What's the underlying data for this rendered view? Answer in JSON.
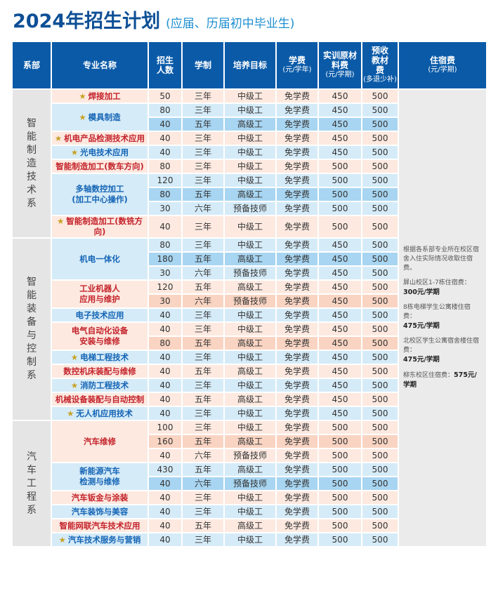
{
  "title": {
    "main": "2024年招生计划",
    "subtitle": "(应届、历届初中毕业生)"
  },
  "colors": {
    "header": "#0a5aa8",
    "red_text": "#c4232b",
    "blue_text": "#1565b5",
    "star": "#c9a227",
    "pink": "#fde9e0",
    "blue": "#d5ebf8"
  },
  "headers": {
    "dept": "系部",
    "major": "专业名称",
    "count": "招生人数",
    "duration": "学制",
    "goal": "培养目标",
    "tuition": "学费",
    "tuition_unit": "(元/学年)",
    "material": "实训原材料费",
    "material_unit": "(元/学期)",
    "books": "预收教材费",
    "books_unit": "(多退少补)",
    "dorm": "住宿费",
    "dorm_unit": "(元/学期)"
  },
  "dorm_note": {
    "intro": "根据各系部专业所在校区宿舍入住实际情况收取住宿费。",
    "items": [
      {
        "label": "屏山校区1-7栋住宿费：",
        "price": "300元/学期"
      },
      {
        "label": "8栋电梯学生公寓楼住宿费：",
        "price": "475元/学期"
      },
      {
        "label": "北校区学生公寓宿舍楼住宿费：",
        "price": "475元/学期"
      },
      {
        "label": "柳东校区住宿费：",
        "price": "575元/学期"
      }
    ]
  },
  "departments": [
    {
      "name": "智能制造技术系",
      "majors": [
        {
          "name": "焊接加工",
          "star": true,
          "color": "red",
          "rows": [
            [
              "50",
              "三年",
              "中级工",
              "免学费",
              "450",
              "500"
            ]
          ]
        },
        {
          "name": "模具制造",
          "star": true,
          "color": "blue",
          "dark": 1,
          "rows": [
            [
              "80",
              "三年",
              "中级工",
              "免学费",
              "450",
              "500"
            ],
            [
              "40",
              "五年",
              "高级工",
              "免学费",
              "450",
              "500"
            ]
          ]
        },
        {
          "name": "机电产品检测技术应用",
          "star": true,
          "color": "red",
          "rows": [
            [
              "40",
              "三年",
              "中级工",
              "免学费",
              "450",
              "500"
            ]
          ]
        },
        {
          "name": "光电技术应用",
          "star": true,
          "color": "blue",
          "rows": [
            [
              "40",
              "三年",
              "中级工",
              "免学费",
              "450",
              "500"
            ]
          ]
        },
        {
          "name": "智能制造加工(数车方向)",
          "star": false,
          "color": "red",
          "rows": [
            [
              "80",
              "三年",
              "中级工",
              "免学费",
              "500",
              "500"
            ]
          ]
        },
        {
          "name": "多轴数控加工\n(加工中心操作)",
          "star": false,
          "color": "blue",
          "dark": 1,
          "rows": [
            [
              "120",
              "三年",
              "中级工",
              "免学费",
              "500",
              "500"
            ],
            [
              "80",
              "五年",
              "高级工",
              "免学费",
              "500",
              "500"
            ],
            [
              "30",
              "六年",
              "预备技师",
              "免学费",
              "500",
              "500"
            ]
          ]
        },
        {
          "name": "智能制造加工(数铣方向)",
          "star": true,
          "color": "red",
          "rows": [
            [
              "40",
              "三年",
              "中级工",
              "免学费",
              "500",
              "500"
            ]
          ]
        }
      ]
    },
    {
      "name": "智能装备与控制系",
      "majors": [
        {
          "name": "机电一体化",
          "star": false,
          "color": "blue",
          "dark": 1,
          "rows": [
            [
              "80",
              "三年",
              "中级工",
              "免学费",
              "450",
              "500"
            ],
            [
              "180",
              "五年",
              "高级工",
              "免学费",
              "450",
              "500"
            ],
            [
              "30",
              "六年",
              "预备技师",
              "免学费",
              "450",
              "500"
            ]
          ]
        },
        {
          "name": "工业机器人\n应用与维护",
          "star": false,
          "color": "red",
          "dark": 1,
          "rows": [
            [
              "120",
              "五年",
              "高级工",
              "免学费",
              "450",
              "500"
            ],
            [
              "30",
              "六年",
              "预备技师",
              "免学费",
              "450",
              "500"
            ]
          ]
        },
        {
          "name": "电子技术应用",
          "star": false,
          "color": "blue",
          "rows": [
            [
              "40",
              "三年",
              "中级工",
              "免学费",
              "450",
              "500"
            ]
          ]
        },
        {
          "name": "电气自动化设备\n安装与维修",
          "star": false,
          "color": "red",
          "dark": 1,
          "rows": [
            [
              "40",
              "三年",
              "中级工",
              "免学费",
              "450",
              "500"
            ],
            [
              "80",
              "五年",
              "高级工",
              "免学费",
              "450",
              "500"
            ]
          ]
        },
        {
          "name": "电梯工程技术",
          "star": true,
          "color": "blue",
          "rows": [
            [
              "40",
              "三年",
              "中级工",
              "免学费",
              "450",
              "500"
            ]
          ]
        },
        {
          "name": "数控机床装配与维修",
          "star": false,
          "color": "red",
          "rows": [
            [
              "40",
              "五年",
              "高级工",
              "免学费",
              "450",
              "500"
            ]
          ]
        },
        {
          "name": "消防工程技术",
          "star": true,
          "color": "blue",
          "rows": [
            [
              "40",
              "三年",
              "中级工",
              "免学费",
              "450",
              "500"
            ]
          ]
        },
        {
          "name": "机械设备装配与自动控制",
          "star": false,
          "color": "red",
          "rows": [
            [
              "40",
              "五年",
              "高级工",
              "免学费",
              "450",
              "500"
            ]
          ]
        },
        {
          "name": "无人机应用技术",
          "star": true,
          "color": "blue",
          "rows": [
            [
              "40",
              "三年",
              "中级工",
              "免学费",
              "450",
              "500"
            ]
          ]
        }
      ]
    },
    {
      "name": "汽车工程系",
      "majors": [
        {
          "name": "汽车维修",
          "star": false,
          "color": "red",
          "dark": 1,
          "rows": [
            [
              "100",
              "三年",
              "中级工",
              "免学费",
              "500",
              "500"
            ],
            [
              "160",
              "五年",
              "高级工",
              "免学费",
              "500",
              "500"
            ],
            [
              "40",
              "六年",
              "预备技师",
              "免学费",
              "500",
              "500"
            ]
          ]
        },
        {
          "name": "新能源汽车\n检测与维修",
          "star": false,
          "color": "blue",
          "dark": 1,
          "rows": [
            [
              "430",
              "五年",
              "高级工",
              "免学费",
              "500",
              "500"
            ],
            [
              "40",
              "六年",
              "预备技师",
              "免学费",
              "500",
              "500"
            ]
          ]
        },
        {
          "name": "汽车钣金与涂装",
          "star": false,
          "color": "red",
          "rows": [
            [
              "40",
              "三年",
              "中级工",
              "免学费",
              "500",
              "500"
            ]
          ]
        },
        {
          "name": "汽车装饰与美容",
          "star": false,
          "color": "blue",
          "rows": [
            [
              "40",
              "三年",
              "中级工",
              "免学费",
              "500",
              "500"
            ]
          ]
        },
        {
          "name": "智能网联汽车技术应用",
          "star": false,
          "color": "red",
          "rows": [
            [
              "40",
              "五年",
              "高级工",
              "免学费",
              "500",
              "500"
            ]
          ]
        },
        {
          "name": "汽车技术服务与营销",
          "star": true,
          "color": "blue",
          "rows": [
            [
              "40",
              "三年",
              "中级工",
              "免学费",
              "500",
              "500"
            ]
          ]
        }
      ]
    }
  ]
}
